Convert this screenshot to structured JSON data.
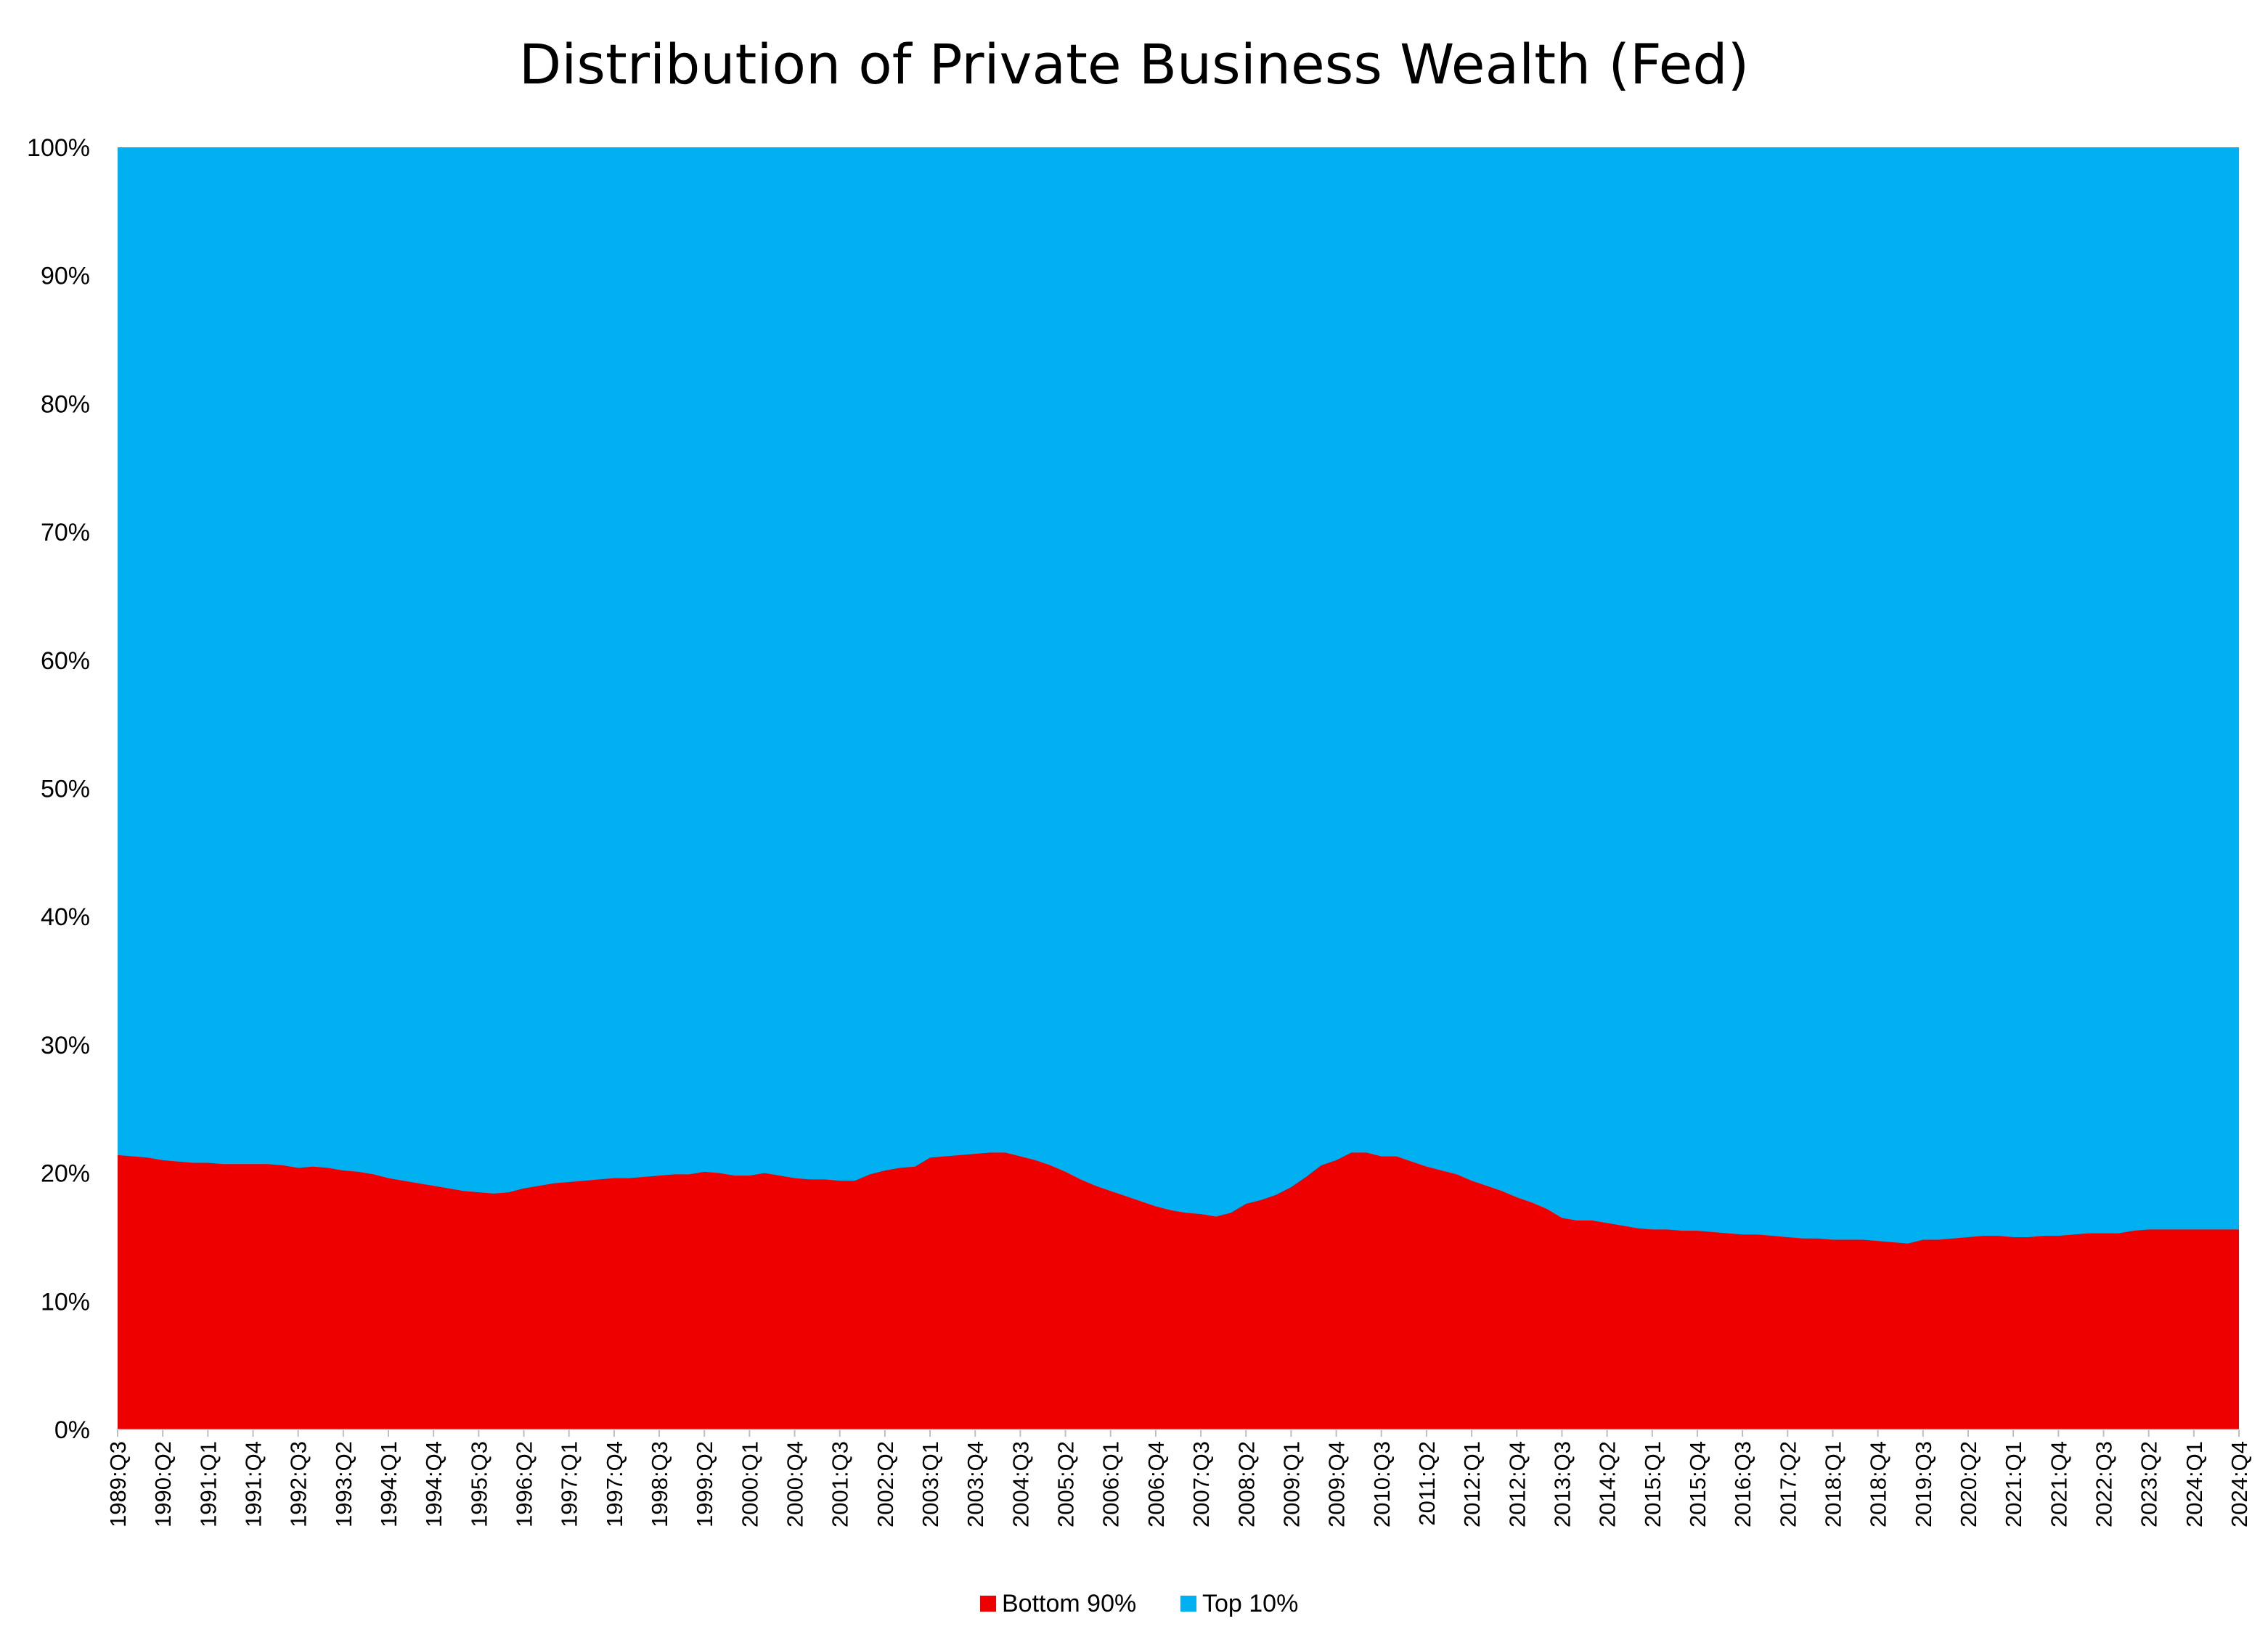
{
  "chart_data": {
    "type": "area",
    "stacked": true,
    "percent_stacked": true,
    "title": "Distribution of Private Business Wealth (Fed)",
    "xlabel": "",
    "ylabel": "",
    "ylim": [
      0,
      100
    ],
    "y_tick_labels": [
      "0%",
      "10%",
      "20%",
      "30%",
      "40%",
      "50%",
      "60%",
      "70%",
      "80%",
      "90%",
      "100%"
    ],
    "x_tick_labels": [
      "1989:Q3",
      "1990:Q2",
      "1991:Q1",
      "1991:Q4",
      "1992:Q3",
      "1993:Q2",
      "1994:Q1",
      "1994:Q4",
      "1995:Q3",
      "1996:Q2",
      "1997:Q1",
      "1997:Q4",
      "1998:Q3",
      "1999:Q2",
      "2000:Q1",
      "2000:Q4",
      "2001:Q3",
      "2002:Q2",
      "2003:Q1",
      "2003:Q4",
      "2004:Q3",
      "2005:Q2",
      "2006:Q1",
      "2006:Q4",
      "2007:Q3",
      "2008:Q2",
      "2009:Q1",
      "2009:Q4",
      "2010:Q3",
      "2011:Q2",
      "2012:Q1",
      "2012:Q4",
      "2013:Q3",
      "2014:Q2",
      "2015:Q1",
      "2015:Q4",
      "2016:Q3",
      "2017:Q2",
      "2018:Q1",
      "2018:Q4",
      "2019:Q3",
      "2020:Q2",
      "2021:Q1",
      "2021:Q4",
      "2022:Q3",
      "2023:Q2",
      "2024:Q1",
      "2024:Q4"
    ],
    "x_start": "1989:Q3",
    "x_end": "2024:Q4",
    "grid": false,
    "legend_position": "bottom",
    "series": [
      {
        "name": "Bottom 90%",
        "color": "#EE0000",
        "values": [
          21.4,
          21.3,
          21.2,
          21.0,
          20.9,
          20.8,
          20.8,
          20.7,
          20.7,
          20.7,
          20.7,
          20.6,
          20.4,
          20.5,
          20.4,
          20.2,
          20.1,
          19.9,
          19.6,
          19.4,
          19.2,
          19.0,
          18.8,
          18.6,
          18.5,
          18.4,
          18.5,
          18.8,
          19.0,
          19.2,
          19.3,
          19.4,
          19.5,
          19.6,
          19.6,
          19.7,
          19.8,
          19.9,
          19.9,
          20.1,
          20.0,
          19.8,
          19.8,
          20.0,
          19.8,
          19.6,
          19.5,
          19.5,
          19.4,
          19.4,
          19.9,
          20.2,
          20.4,
          20.5,
          21.2,
          21.3,
          21.4,
          21.5,
          21.6,
          21.6,
          21.3,
          21.0,
          20.6,
          20.1,
          19.5,
          19.0,
          18.6,
          18.2,
          17.8,
          17.4,
          17.1,
          16.9,
          16.8,
          16.6,
          16.9,
          17.6,
          17.9,
          18.3,
          18.9,
          19.7,
          20.6,
          21.0,
          21.6,
          21.6,
          21.3,
          21.3,
          20.9,
          20.5,
          20.2,
          19.9,
          19.4,
          19.0,
          18.6,
          18.1,
          17.7,
          17.2,
          16.5,
          16.3,
          16.3,
          16.1,
          15.9,
          15.7,
          15.6,
          15.6,
          15.5,
          15.5,
          15.4,
          15.3,
          15.2,
          15.2,
          15.1,
          15.0,
          14.9,
          14.9,
          14.8,
          14.8,
          14.8,
          14.7,
          14.6,
          14.5,
          14.8,
          14.8,
          14.9,
          15.0,
          15.1,
          15.1,
          15.0,
          15.0,
          15.1,
          15.1,
          15.2,
          15.3,
          15.3,
          15.3,
          15.5,
          15.6,
          15.6,
          15.6,
          15.6,
          15.6,
          15.6,
          15.6
        ]
      },
      {
        "name": "Top 10%",
        "color": "#00B0F0",
        "values": "complement of Bottom 90% to 100%"
      }
    ]
  },
  "legend": {
    "items": [
      {
        "label": "Bottom 90%",
        "color": "#EE0000"
      },
      {
        "label": "Top 10%",
        "color": "#00B0F0"
      }
    ]
  }
}
